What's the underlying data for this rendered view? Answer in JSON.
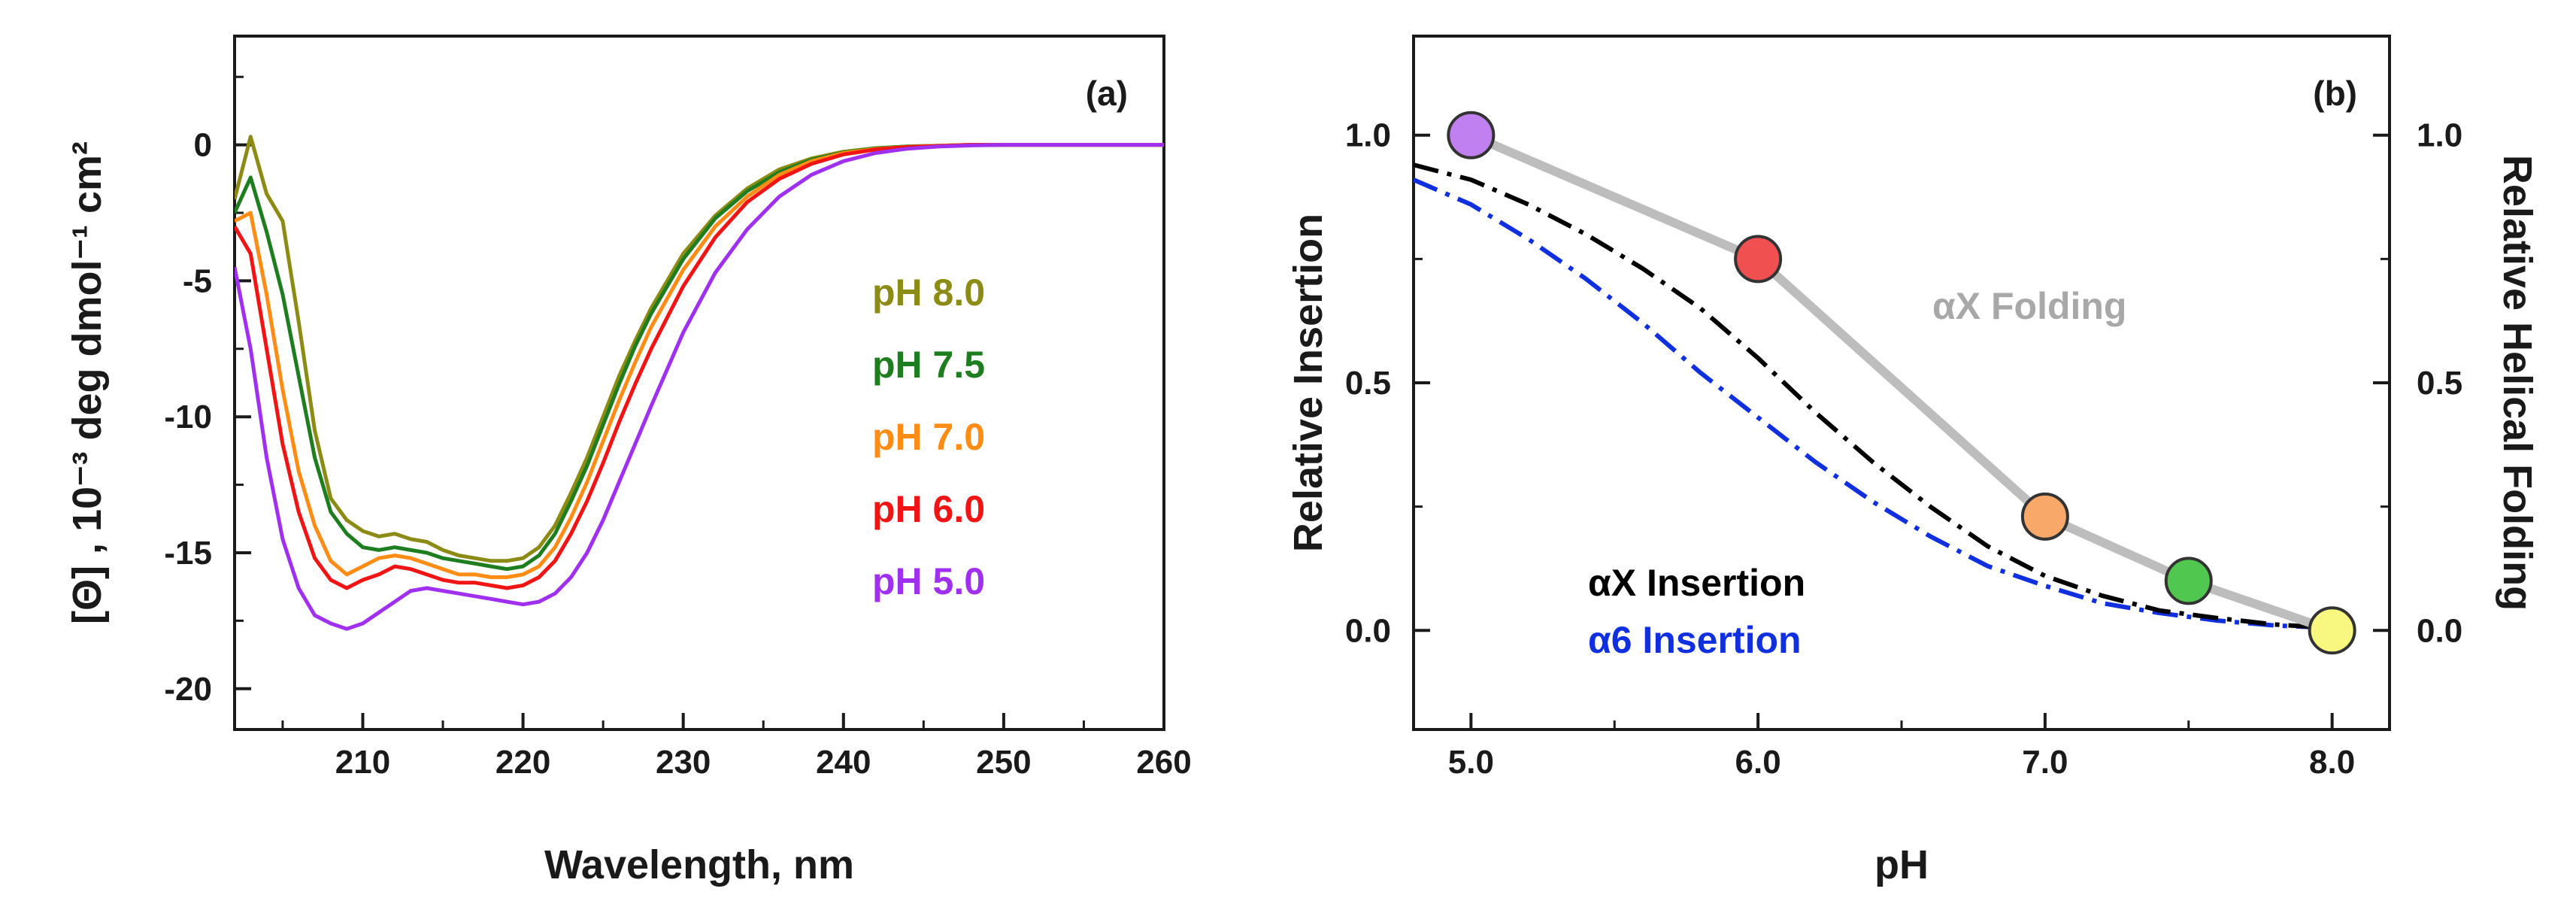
{
  "chart_data": [
    {
      "panel_label": "(a)",
      "type": "line",
      "title": "",
      "xlabel": "Wavelength, nm",
      "ylabel": "[Θ] , 10⁻³ deg dmol⁻¹ cm²",
      "xlim": [
        202,
        260
      ],
      "ylim": [
        -21.5,
        4
      ],
      "xticks": [
        210,
        220,
        230,
        240,
        250,
        260
      ],
      "yticks": [
        0,
        -5,
        -10,
        -15,
        -20
      ],
      "series": [
        {
          "name": "pH 8.0",
          "color": "#8b8b16",
          "x": [
            202,
            203,
            204,
            205,
            206,
            207,
            208,
            209,
            210,
            211,
            212,
            213,
            214,
            215,
            216,
            217,
            218,
            219,
            220,
            221,
            222,
            223,
            224,
            225,
            226,
            227,
            228,
            230,
            232,
            234,
            236,
            238,
            240,
            242,
            244,
            246,
            248,
            250,
            255,
            260
          ],
          "y": [
            -2,
            0.3,
            -1.8,
            -2.8,
            -6.5,
            -10.5,
            -13,
            -13.8,
            -14.2,
            -14.4,
            -14.3,
            -14.5,
            -14.6,
            -14.9,
            -15.1,
            -15.2,
            -15.3,
            -15.3,
            -15.2,
            -14.8,
            -14,
            -12.8,
            -11.5,
            -10,
            -8.5,
            -7.2,
            -6,
            -4,
            -2.6,
            -1.6,
            -0.9,
            -0.5,
            -0.25,
            -0.12,
            -0.06,
            -0.03,
            0,
            0,
            0,
            0
          ]
        },
        {
          "name": "pH 7.5",
          "color": "#1e7d1e",
          "x": [
            202,
            203,
            204,
            205,
            206,
            207,
            208,
            209,
            210,
            211,
            212,
            213,
            214,
            215,
            216,
            217,
            218,
            219,
            220,
            221,
            222,
            223,
            224,
            225,
            226,
            227,
            228,
            230,
            232,
            234,
            236,
            238,
            240,
            242,
            244,
            246,
            248,
            250,
            255,
            260
          ],
          "y": [
            -2.5,
            -1.2,
            -3.2,
            -5.5,
            -8.5,
            -11.5,
            -13.5,
            -14.3,
            -14.8,
            -14.9,
            -14.8,
            -14.9,
            -15,
            -15.2,
            -15.3,
            -15.4,
            -15.5,
            -15.6,
            -15.5,
            -15.1,
            -14.3,
            -13.1,
            -11.8,
            -10.3,
            -8.8,
            -7.4,
            -6.2,
            -4.2,
            -2.7,
            -1.7,
            -1,
            -0.55,
            -0.28,
            -0.13,
            -0.06,
            -0.03,
            0,
            0,
            0,
            0
          ]
        },
        {
          "name": "pH 7.0",
          "color": "#ff8c14",
          "x": [
            202,
            203,
            204,
            205,
            206,
            207,
            208,
            209,
            210,
            211,
            212,
            213,
            214,
            215,
            216,
            217,
            218,
            219,
            220,
            221,
            222,
            223,
            224,
            225,
            226,
            227,
            228,
            230,
            232,
            234,
            236,
            238,
            240,
            242,
            244,
            246,
            248,
            250,
            255,
            260
          ],
          "y": [
            -2.8,
            -2.5,
            -5.5,
            -9,
            -12,
            -14,
            -15.3,
            -15.8,
            -15.5,
            -15.2,
            -15.1,
            -15.2,
            -15.4,
            -15.6,
            -15.8,
            -15.8,
            -15.9,
            -15.9,
            -15.8,
            -15.5,
            -14.8,
            -13.7,
            -12.4,
            -10.9,
            -9.4,
            -8,
            -6.7,
            -4.6,
            -3,
            -1.9,
            -1.1,
            -0.6,
            -0.3,
            -0.15,
            -0.07,
            -0.03,
            0,
            0,
            0,
            0
          ]
        },
        {
          "name": "pH 6.0",
          "color": "#f01414",
          "x": [
            202,
            203,
            204,
            205,
            206,
            207,
            208,
            209,
            210,
            211,
            212,
            213,
            214,
            215,
            216,
            217,
            218,
            219,
            220,
            221,
            222,
            223,
            224,
            225,
            226,
            227,
            228,
            230,
            232,
            234,
            236,
            238,
            240,
            242,
            244,
            246,
            248,
            250,
            255,
            260
          ],
          "y": [
            -3,
            -4,
            -7.5,
            -11,
            -13.5,
            -15.2,
            -16,
            -16.3,
            -16,
            -15.8,
            -15.5,
            -15.6,
            -15.8,
            -16,
            -16.1,
            -16.1,
            -16.2,
            -16.3,
            -16.2,
            -15.9,
            -15.3,
            -14.3,
            -13.1,
            -11.7,
            -10.2,
            -8.8,
            -7.5,
            -5.2,
            -3.4,
            -2.1,
            -1.25,
            -0.7,
            -0.35,
            -0.17,
            -0.08,
            -0.04,
            0,
            0,
            0,
            0
          ]
        },
        {
          "name": "pH 5.0",
          "color": "#a030f0",
          "x": [
            202,
            203,
            204,
            205,
            206,
            207,
            208,
            209,
            210,
            211,
            212,
            213,
            214,
            215,
            216,
            217,
            218,
            219,
            220,
            221,
            222,
            223,
            224,
            225,
            226,
            227,
            228,
            230,
            232,
            234,
            236,
            238,
            240,
            242,
            244,
            246,
            248,
            250,
            255,
            260
          ],
          "y": [
            -4.5,
            -7.5,
            -11.5,
            -14.5,
            -16.3,
            -17.3,
            -17.6,
            -17.8,
            -17.6,
            -17.2,
            -16.8,
            -16.4,
            -16.3,
            -16.4,
            -16.5,
            -16.6,
            -16.7,
            -16.8,
            -16.9,
            -16.8,
            -16.5,
            -15.9,
            -15,
            -13.8,
            -12.4,
            -11,
            -9.6,
            -6.9,
            -4.7,
            -3.1,
            -1.9,
            -1.1,
            -0.6,
            -0.3,
            -0.14,
            -0.06,
            -0.02,
            0,
            0,
            0
          ]
        }
      ]
    },
    {
      "panel_label": "(b)",
      "type": "line",
      "title": "",
      "xlabel": "pH",
      "ylabel": "Relative Insertion",
      "y2label": "Relative Helical Folding",
      "xlim": [
        4.8,
        8.2
      ],
      "ylim": [
        -0.2,
        1.2
      ],
      "xticks": [
        "5.0",
        "6.0",
        "7.0",
        "8.0"
      ],
      "yticks": [
        "0.0",
        "0.5",
        "1.0"
      ],
      "y2ticks": [
        "0.0",
        "0.5",
        "1.0"
      ],
      "series": [
        {
          "name": "αX Folding",
          "color": "#bdbdbd",
          "style": "solid-with-markers",
          "x": [
            5.0,
            6.0,
            7.0,
            7.5,
            8.0
          ],
          "y": [
            1.0,
            0.75,
            0.23,
            0.1,
            0.0
          ],
          "marker_colors": [
            "#c080f0",
            "#f05050",
            "#f8a868",
            "#50c850",
            "#f8f880"
          ]
        },
        {
          "name": "αX Insertion",
          "color": "#000000",
          "style": "dash-dot",
          "x": [
            4.8,
            5.0,
            5.2,
            5.4,
            5.6,
            5.8,
            6.0,
            6.2,
            6.4,
            6.6,
            6.8,
            7.0,
            7.2,
            7.4,
            7.6,
            7.8,
            8.0
          ],
          "y": [
            0.94,
            0.91,
            0.86,
            0.8,
            0.73,
            0.65,
            0.55,
            0.44,
            0.34,
            0.25,
            0.17,
            0.11,
            0.07,
            0.04,
            0.025,
            0.012,
            0.005
          ]
        },
        {
          "name": "α6 Insertion",
          "color": "#1030e0",
          "style": "dash-dot",
          "x": [
            4.8,
            5.0,
            5.2,
            5.4,
            5.6,
            5.8,
            6.0,
            6.2,
            6.4,
            6.6,
            6.8,
            7.0,
            7.2,
            7.4,
            7.6,
            7.8,
            8.0
          ],
          "y": [
            0.91,
            0.86,
            0.79,
            0.71,
            0.62,
            0.52,
            0.43,
            0.34,
            0.26,
            0.19,
            0.13,
            0.09,
            0.055,
            0.035,
            0.02,
            0.01,
            0.005
          ]
        }
      ]
    }
  ]
}
